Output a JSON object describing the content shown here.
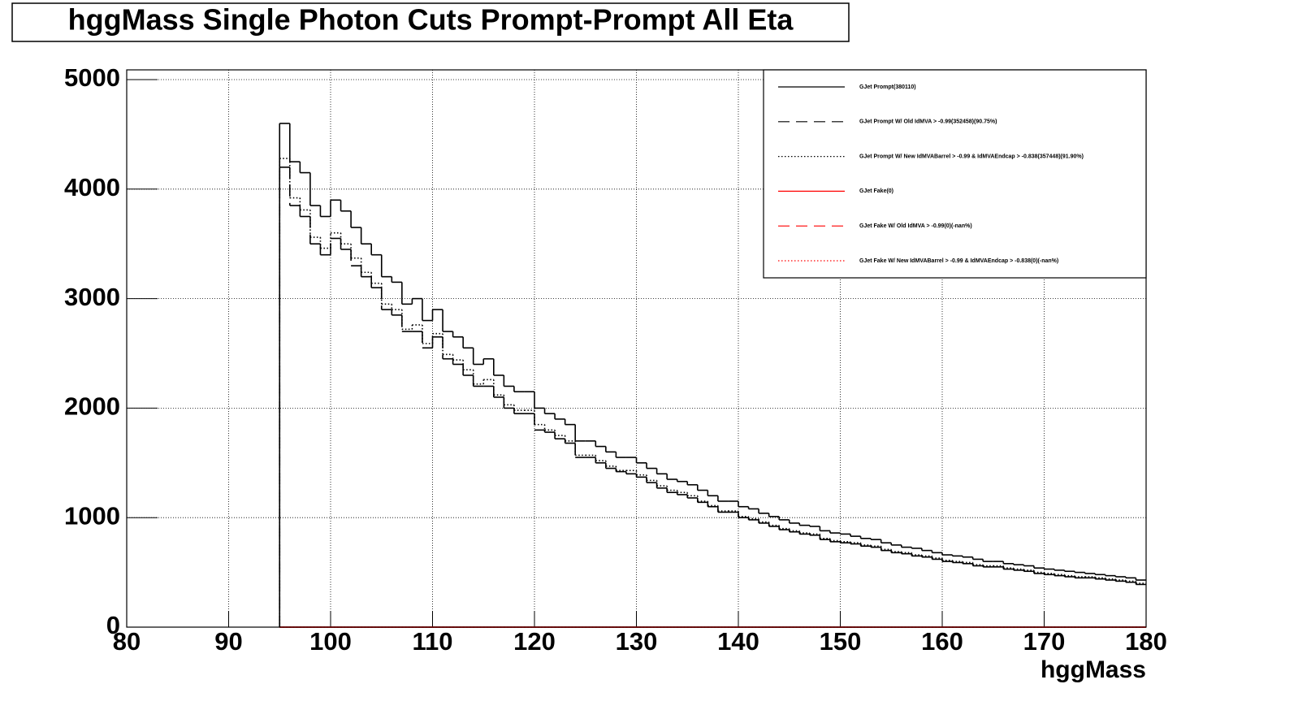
{
  "chart_data": {
    "type": "histogram",
    "title": "hggMass Single Photon Cuts Prompt-Prompt All Eta",
    "x_label": "hggMass",
    "bins": [
      95,
      96,
      97,
      98,
      99,
      100,
      101,
      102,
      103,
      104,
      105,
      106,
      107,
      108,
      109,
      110,
      111,
      112,
      113,
      114,
      115,
      116,
      117,
      118,
      119,
      120,
      121,
      122,
      123,
      124,
      125,
      126,
      127,
      128,
      129,
      130,
      131,
      132,
      133,
      134,
      135,
      136,
      137,
      138,
      139,
      140,
      141,
      142,
      143,
      144,
      145,
      146,
      147,
      148,
      149,
      150,
      151,
      152,
      153,
      154,
      155,
      156,
      157,
      158,
      159,
      160,
      161,
      162,
      163,
      164,
      165,
      166,
      167,
      168,
      169,
      170,
      171,
      172,
      173,
      174,
      175,
      176,
      177,
      178,
      179,
      180
    ],
    "series": [
      {
        "name": "GJet Prompt(380110)",
        "color": "#000000",
        "line_style": "solid",
        "values": [
          4600,
          4250,
          4150,
          3850,
          3750,
          3900,
          3800,
          3650,
          3500,
          3400,
          3200,
          3150,
          2950,
          3000,
          2800,
          2900,
          2700,
          2650,
          2550,
          2400,
          2450,
          2300,
          2200,
          2150,
          2150,
          2000,
          1950,
          1900,
          1850,
          1700,
          1700,
          1650,
          1600,
          1550,
          1550,
          1500,
          1450,
          1400,
          1350,
          1330,
          1300,
          1250,
          1200,
          1150,
          1150,
          1100,
          1080,
          1040,
          1010,
          980,
          950,
          930,
          920,
          880,
          860,
          850,
          830,
          810,
          800,
          770,
          750,
          730,
          720,
          700,
          680,
          660,
          650,
          640,
          620,
          600,
          600,
          580,
          570,
          560,
          540,
          530,
          520,
          510,
          500,
          490,
          480,
          470,
          460,
          450,
          430
        ]
      },
      {
        "name": "GJet Prompt W/ Old IdMVA > -0.99(352458)(90.75%)",
        "color": "#000000",
        "line_style": "dashed",
        "values": [
          4200,
          3850,
          3750,
          3500,
          3400,
          3550,
          3450,
          3300,
          3200,
          3100,
          2900,
          2850,
          2700,
          2700,
          2550,
          2650,
          2450,
          2400,
          2300,
          2200,
          2200,
          2100,
          2000,
          1950,
          1950,
          1800,
          1780,
          1720,
          1680,
          1550,
          1550,
          1500,
          1450,
          1420,
          1400,
          1370,
          1320,
          1270,
          1230,
          1210,
          1180,
          1140,
          1100,
          1050,
          1050,
          1000,
          980,
          950,
          920,
          890,
          870,
          850,
          840,
          800,
          780,
          770,
          760,
          740,
          730,
          700,
          680,
          670,
          650,
          640,
          620,
          600,
          590,
          580,
          560,
          550,
          550,
          530,
          520,
          510,
          490,
          480,
          470,
          460,
          450,
          450,
          440,
          430,
          420,
          410,
          390
        ]
      },
      {
        "name": "GJet Prompt W/ New IdMVABarrel > -0.99 & IdMVAEndcap > -0.838(357448)(91.90%)",
        "color": "#000000",
        "line_style": "dotted",
        "values": [
          4280,
          3920,
          3810,
          3560,
          3460,
          3600,
          3500,
          3370,
          3240,
          3140,
          2950,
          2900,
          2720,
          2760,
          2590,
          2680,
          2490,
          2440,
          2350,
          2220,
          2260,
          2120,
          2030,
          1980,
          1980,
          1850,
          1800,
          1750,
          1700,
          1570,
          1570,
          1520,
          1470,
          1430,
          1430,
          1390,
          1340,
          1290,
          1250,
          1230,
          1200,
          1150,
          1110,
          1060,
          1060,
          1010,
          990,
          960,
          930,
          900,
          880,
          860,
          850,
          810,
          790,
          780,
          770,
          750,
          740,
          710,
          690,
          680,
          660,
          650,
          630,
          610,
          600,
          590,
          570,
          560,
          560,
          540,
          530,
          520,
          500,
          490,
          480,
          470,
          460,
          460,
          450,
          440,
          430,
          420,
          400
        ]
      },
      {
        "name": "GJet Fake(0)",
        "color": "#ff0000",
        "line_style": "solid",
        "values": [
          0,
          0,
          0,
          0,
          0,
          0,
          0,
          0,
          0,
          0,
          0,
          0,
          0,
          0,
          0,
          0,
          0,
          0,
          0,
          0,
          0,
          0,
          0,
          0,
          0,
          0,
          0,
          0,
          0,
          0,
          0,
          0,
          0,
          0,
          0,
          0,
          0,
          0,
          0,
          0,
          0,
          0,
          0,
          0,
          0,
          0,
          0,
          0,
          0,
          0,
          0,
          0,
          0,
          0,
          0,
          0,
          0,
          0,
          0,
          0,
          0,
          0,
          0,
          0,
          0,
          0,
          0,
          0,
          0,
          0,
          0,
          0,
          0,
          0,
          0,
          0,
          0,
          0,
          0,
          0,
          0,
          0,
          0,
          0,
          0
        ]
      },
      {
        "name": "GJet Fake W/ Old IdMVA > -0.99(0)(-nan%)",
        "color": "#ff0000",
        "line_style": "dashed",
        "values": [
          0,
          0,
          0,
          0,
          0,
          0,
          0,
          0,
          0,
          0,
          0,
          0,
          0,
          0,
          0,
          0,
          0,
          0,
          0,
          0,
          0,
          0,
          0,
          0,
          0,
          0,
          0,
          0,
          0,
          0,
          0,
          0,
          0,
          0,
          0,
          0,
          0,
          0,
          0,
          0,
          0,
          0,
          0,
          0,
          0,
          0,
          0,
          0,
          0,
          0,
          0,
          0,
          0,
          0,
          0,
          0,
          0,
          0,
          0,
          0,
          0,
          0,
          0,
          0,
          0,
          0,
          0,
          0,
          0,
          0,
          0,
          0,
          0,
          0,
          0,
          0,
          0,
          0,
          0,
          0,
          0,
          0,
          0,
          0,
          0
        ]
      },
      {
        "name": "GJet Fake W/ New IdMVABarrel > -0.99 & IdMVAEndcap > -0.838(0)(-nan%)",
        "color": "#ff0000",
        "line_style": "dotted",
        "values": [
          0,
          0,
          0,
          0,
          0,
          0,
          0,
          0,
          0,
          0,
          0,
          0,
          0,
          0,
          0,
          0,
          0,
          0,
          0,
          0,
          0,
          0,
          0,
          0,
          0,
          0,
          0,
          0,
          0,
          0,
          0,
          0,
          0,
          0,
          0,
          0,
          0,
          0,
          0,
          0,
          0,
          0,
          0,
          0,
          0,
          0,
          0,
          0,
          0,
          0,
          0,
          0,
          0,
          0,
          0,
          0,
          0,
          0,
          0,
          0,
          0,
          0,
          0,
          0,
          0,
          0,
          0,
          0,
          0,
          0,
          0,
          0,
          0,
          0,
          0,
          0,
          0,
          0,
          0,
          0,
          0,
          0,
          0,
          0,
          0
        ]
      }
    ],
    "xlim": [
      80,
      180
    ],
    "xticks": [
      80,
      90,
      100,
      110,
      120,
      130,
      140,
      150,
      160,
      170,
      180
    ],
    "ylim": [
      0,
      5000
    ],
    "yticks": [
      0,
      1000,
      2000,
      3000,
      4000,
      5000
    ],
    "grid": true,
    "legend_position": "upper right"
  }
}
